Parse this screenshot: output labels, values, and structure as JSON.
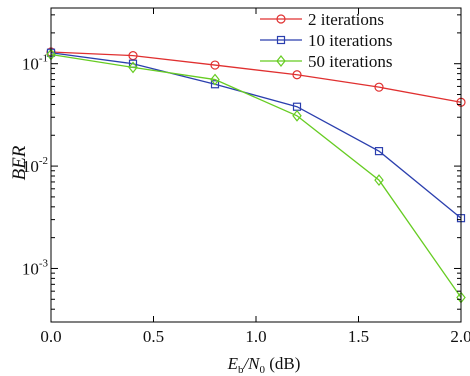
{
  "chart_data": {
    "type": "line",
    "title": "",
    "xlabel": {
      "main": "E",
      "sub1": "b",
      "mid": "/N",
      "sub2": "0",
      "unit": " (dB)"
    },
    "ylabel": "BER",
    "yscale": "log",
    "xlim": [
      0,
      2
    ],
    "ylim": [
      0.0003,
      0.35
    ],
    "x_ticks": [
      "0.0",
      "0.5",
      "1.0",
      "1.5",
      "2.0"
    ],
    "y_ticks": [
      {
        "value": 0.1,
        "base": "10",
        "exp": "-1"
      },
      {
        "value": 0.01,
        "base": "10",
        "exp": "-2"
      },
      {
        "value": 0.001,
        "base": "10",
        "exp": "-3"
      }
    ],
    "legend_position": "top-right",
    "grid": false,
    "x": [
      0.0,
      0.4,
      0.8,
      1.2,
      1.6,
      2.0
    ],
    "series": [
      {
        "name": "2 iterations",
        "color": "#e03030",
        "marker": "circle",
        "values": [
          0.13,
          0.12,
          0.097,
          0.078,
          0.059,
          0.042
        ]
      },
      {
        "name": "10 iterations",
        "color": "#2b3fae",
        "marker": "square",
        "values": [
          0.128,
          0.1,
          0.063,
          0.038,
          0.014,
          0.0031
        ]
      },
      {
        "name": "50 iterations",
        "color": "#66cc22",
        "marker": "diamond",
        "values": [
          0.123,
          0.092,
          0.07,
          0.031,
          0.0073,
          0.00052
        ]
      }
    ]
  }
}
